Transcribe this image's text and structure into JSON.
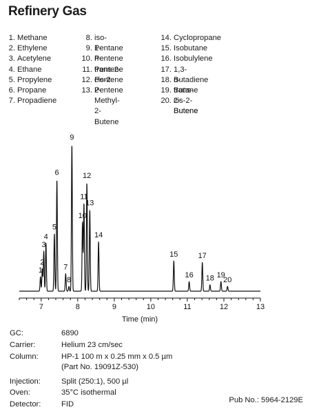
{
  "title": "Refinery Gas",
  "peaks": [
    {
      "num": "1.",
      "name": "Methane"
    },
    {
      "num": "2.",
      "name": "Ethylene"
    },
    {
      "num": "3.",
      "name": "Acetylene"
    },
    {
      "num": "4.",
      "name": "Ethane"
    },
    {
      "num": "5.",
      "name": "Propylene"
    },
    {
      "num": "6.",
      "name": "Propane"
    },
    {
      "num": "7.",
      "name": "Propadiene"
    },
    {
      "num": "8.",
      "name": "iso-Pentane"
    },
    {
      "num": "9.",
      "name": "1-Pentene"
    },
    {
      "num": "10.",
      "name": "n-Pentene"
    },
    {
      "num": "11.",
      "name": "trans-2-Pentene"
    },
    {
      "num": "12.",
      "name": "cis-2-Pentene"
    },
    {
      "num": "13.",
      "name": "2-Methyl-\n2-Butene"
    },
    {
      "num": "14.",
      "name": "Cyclopropane"
    },
    {
      "num": "15.",
      "name": "Isobutane"
    },
    {
      "num": "16.",
      "name": "Isobulylene"
    },
    {
      "num": "17.",
      "name": "1,3-Butadiene"
    },
    {
      "num": "18.",
      "name": "n-Butane"
    },
    {
      "num": "19.",
      "name": "trans-2-Butene"
    },
    {
      "num": "20.",
      "name": "cis-2-Butene"
    }
  ],
  "chart_data": {
    "type": "line",
    "xlabel": "Time (min)",
    "ylabel": "",
    "xlim": [
      6.4,
      13.0
    ],
    "xticks": [
      7,
      8,
      9,
      10,
      11,
      12,
      13
    ],
    "ylim": [
      0,
      100
    ],
    "grid": false,
    "peaks": [
      {
        "label": "1",
        "rt": 6.98,
        "height": 9
      },
      {
        "label": "2",
        "rt": 7.03,
        "height": 14
      },
      {
        "label": "3",
        "rt": 7.07,
        "height": 25
      },
      {
        "label": "4",
        "rt": 7.13,
        "height": 30
      },
      {
        "label": "5",
        "rt": 7.36,
        "height": 36
      },
      {
        "label": "6",
        "rt": 7.43,
        "height": 70
      },
      {
        "label": "7",
        "rt": 7.67,
        "height": 11
      },
      {
        "label": "8",
        "rt": 7.76,
        "height": 3
      },
      {
        "label": "9",
        "rt": 7.84,
        "height": 92
      },
      {
        "label": "10",
        "rt": 8.13,
        "height": 43
      },
      {
        "label": "11",
        "rt": 8.17,
        "height": 55
      },
      {
        "label": "12",
        "rt": 8.25,
        "height": 68
      },
      {
        "label": "13",
        "rt": 8.33,
        "height": 51
      },
      {
        "label": "14",
        "rt": 8.57,
        "height": 31
      },
      {
        "label": "15",
        "rt": 10.63,
        "height": 19
      },
      {
        "label": "16",
        "rt": 11.05,
        "height": 6
      },
      {
        "label": "17",
        "rt": 11.41,
        "height": 18
      },
      {
        "label": "18",
        "rt": 11.62,
        "height": 4
      },
      {
        "label": "19",
        "rt": 11.92,
        "height": 6
      },
      {
        "label": "20",
        "rt": 12.1,
        "height": 3
      }
    ]
  },
  "conditions": [
    {
      "label": "GC:",
      "value": "6890"
    },
    {
      "label": "Carrier:",
      "value": "Helium 23 cm/sec"
    },
    {
      "label": "Column:",
      "value": "HP-1 100 m x 0.25 mm x 0.5 µm\n(Part No. 19091Z-530)"
    },
    {
      "label": "Injection:",
      "value": "Split (250:1), 500 µl"
    },
    {
      "label": "Oven:",
      "value": "35°C isothermal"
    },
    {
      "label": "Detector:",
      "value": "FID"
    }
  ],
  "pub_number": "Pub No.: 5964-2129E"
}
